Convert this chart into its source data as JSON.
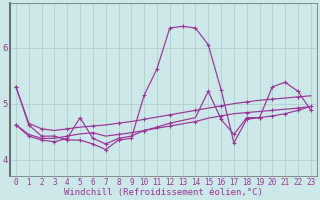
{
  "background_color": "#cce8e8",
  "grid_color": "#aacccc",
  "line_color": "#993399",
  "xlabel": "Windchill (Refroidissement éolien,°C)",
  "xlabel_fontsize": 6.5,
  "tick_fontsize": 5.5,
  "ytick_fontsize": 6.5,
  "ylim": [
    3.7,
    6.8
  ],
  "xlim": [
    -0.5,
    23.5
  ],
  "yticks": [
    4,
    5,
    6
  ],
  "xticks": [
    0,
    1,
    2,
    3,
    4,
    5,
    6,
    7,
    8,
    9,
    10,
    11,
    12,
    13,
    14,
    15,
    16,
    17,
    18,
    19,
    20,
    21,
    22,
    23
  ],
  "series1_x": [
    0,
    1,
    2,
    3,
    4,
    5,
    6,
    7,
    8,
    9,
    10,
    11,
    12,
    13,
    14,
    15,
    16,
    17,
    18,
    19,
    20,
    21,
    22,
    23
  ],
  "series1_y": [
    5.3,
    4.65,
    4.55,
    4.52,
    4.55,
    4.58,
    4.6,
    4.62,
    4.65,
    4.68,
    4.72,
    4.76,
    4.8,
    4.84,
    4.88,
    4.92,
    4.96,
    5.0,
    5.03,
    5.06,
    5.08,
    5.1,
    5.12,
    5.14
  ],
  "series2_x": [
    0,
    1,
    2,
    3,
    4,
    5,
    6,
    7,
    8,
    9,
    10,
    11,
    12,
    13,
    14,
    15,
    16,
    17,
    18,
    19,
    20,
    21,
    22,
    23
  ],
  "series2_y": [
    4.62,
    4.45,
    4.38,
    4.38,
    4.42,
    4.46,
    4.48,
    4.42,
    4.45,
    4.48,
    4.52,
    4.56,
    4.6,
    4.64,
    4.68,
    4.74,
    4.78,
    4.82,
    4.84,
    4.86,
    4.88,
    4.9,
    4.92,
    4.95
  ],
  "series3_x": [
    0,
    1,
    2,
    3,
    4,
    5,
    6,
    7,
    8,
    9,
    10,
    11,
    12,
    13,
    14,
    15,
    16,
    17,
    18,
    19,
    20,
    21,
    22,
    23
  ],
  "series3_y": [
    4.62,
    4.42,
    4.35,
    4.32,
    4.38,
    4.75,
    4.38,
    4.28,
    4.38,
    4.42,
    4.52,
    4.58,
    4.65,
    4.7,
    4.75,
    5.22,
    4.72,
    4.45,
    4.75,
    4.75,
    4.78,
    4.82,
    4.88,
    4.95
  ],
  "series4_x": [
    0,
    1,
    2,
    3,
    4,
    5,
    6,
    7,
    8,
    9,
    10,
    11,
    12,
    13,
    14,
    15,
    16,
    17,
    18,
    19,
    20,
    21,
    22,
    23
  ],
  "series4_y": [
    5.3,
    4.62,
    4.42,
    4.42,
    4.35,
    4.35,
    4.28,
    4.18,
    4.35,
    4.38,
    5.15,
    5.62,
    6.35,
    6.38,
    6.35,
    6.05,
    5.25,
    4.3,
    4.72,
    4.75,
    5.3,
    5.38,
    5.22,
    4.88
  ]
}
